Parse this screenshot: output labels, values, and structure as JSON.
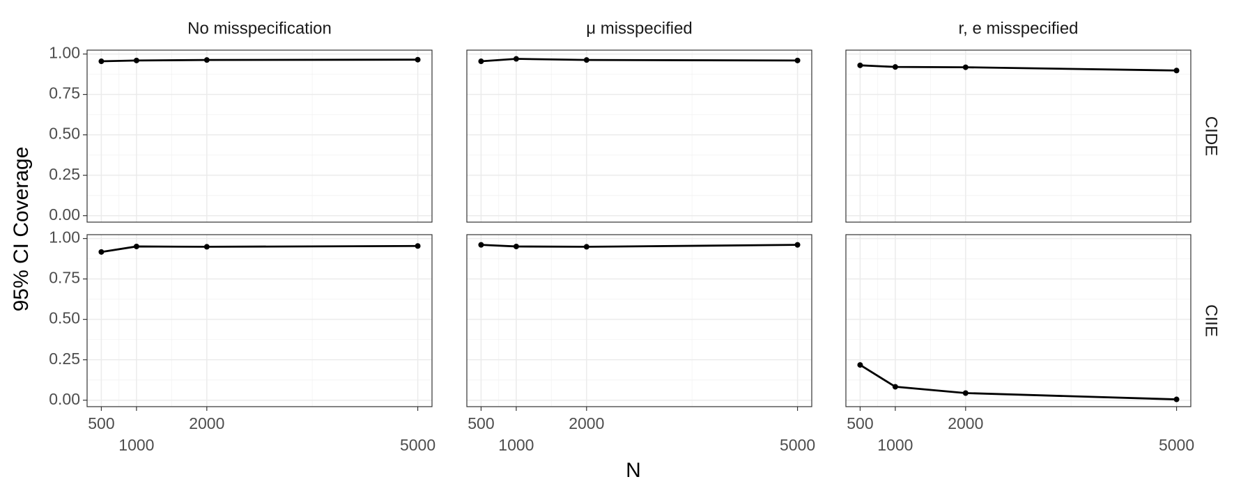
{
  "chart_data": {
    "type": "line",
    "columns": [
      "No misspecification",
      "μ misspecified",
      "r, e misspecified"
    ],
    "rows": [
      "CIDE",
      "CIIE"
    ],
    "xlabel": "N",
    "ylabel": "95% CI Coverage",
    "x": [
      500,
      1000,
      2000,
      5000
    ],
    "values": [
      [
        [
          0.955,
          0.96,
          0.963,
          0.965
        ],
        [
          0.955,
          0.97,
          0.963,
          0.96
        ],
        [
          0.93,
          0.92,
          0.918,
          0.898
        ]
      ],
      [
        [
          0.917,
          0.951,
          0.949,
          0.954
        ],
        [
          0.961,
          0.951,
          0.949,
          0.961
        ],
        [
          0.218,
          0.083,
          0.044,
          0.005
        ]
      ]
    ],
    "color": "#000000",
    "xlim": [
      297.5,
      5202.5
    ],
    "xticks": [
      500,
      1000,
      2000,
      5000
    ],
    "ylim": [
      -0.04,
      1.024
    ],
    "yticks": [
      {
        "value": 0,
        "label": "0.00"
      },
      {
        "value": 0.25,
        "label": "0.25"
      },
      {
        "value": 0.5,
        "label": "0.50"
      },
      {
        "value": 0.75,
        "label": "0.75"
      },
      {
        "value": 1,
        "label": "1.00"
      }
    ],
    "grid": true
  }
}
